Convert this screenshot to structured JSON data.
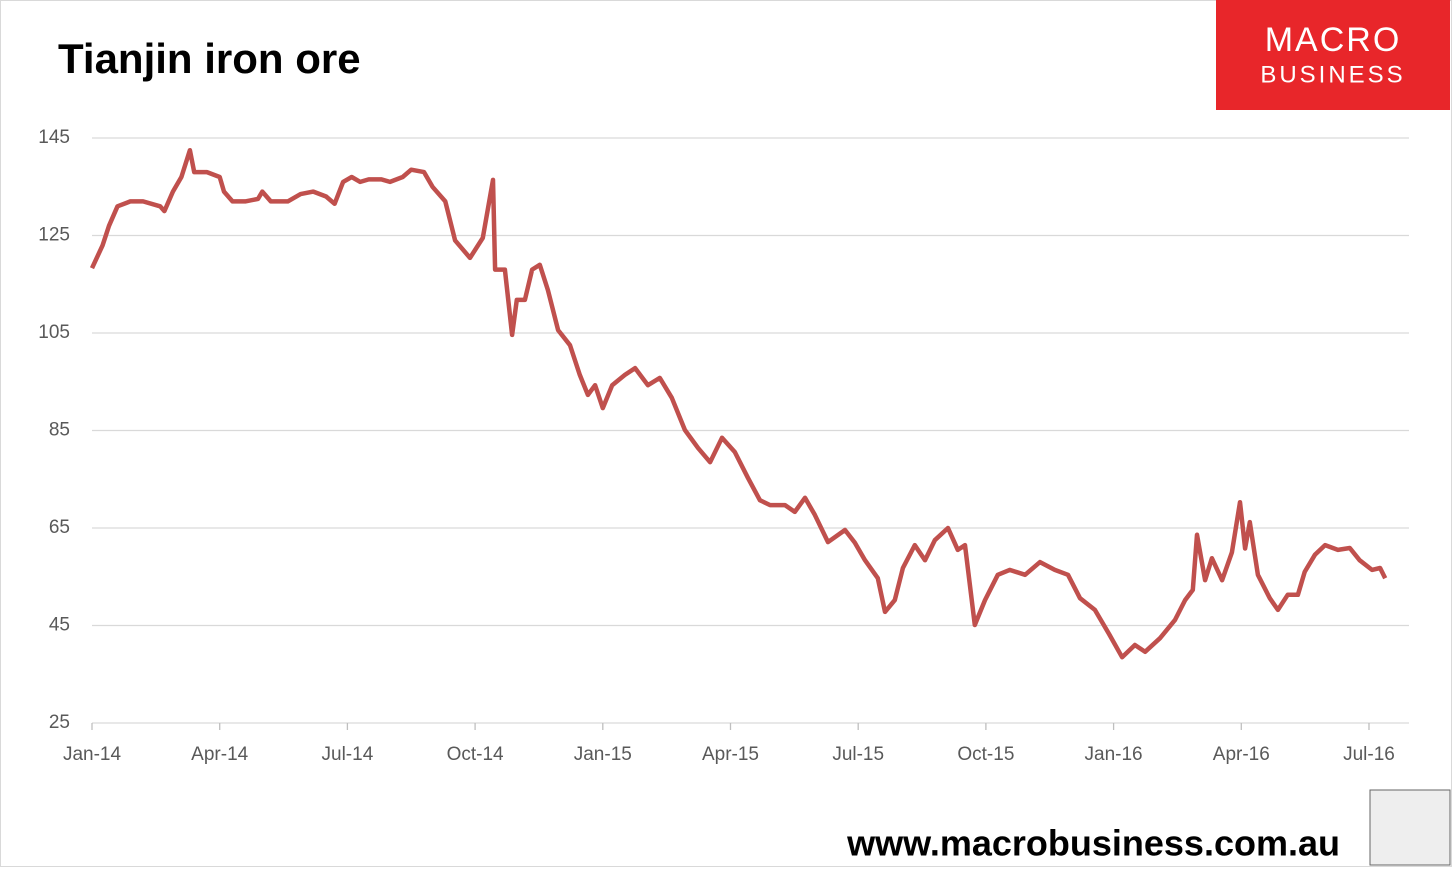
{
  "chart_data": {
    "type": "line",
    "title": "Tianjin iron ore",
    "logo": {
      "line1": "MACRO",
      "line2": "BUSINESS"
    },
    "footer": "www.macrobusiness.com.au",
    "xlim": [
      0,
      30.94
    ],
    "xticks": [
      {
        "value": 0,
        "label": "Jan-14"
      },
      {
        "value": 3,
        "label": "Apr-14"
      },
      {
        "value": 6,
        "label": "Jul-14"
      },
      {
        "value": 9,
        "label": "Oct-14"
      },
      {
        "value": 12,
        "label": "Jan-15"
      },
      {
        "value": 15,
        "label": "Apr-15"
      },
      {
        "value": 18,
        "label": "Jul-15"
      },
      {
        "value": 21,
        "label": "Oct-15"
      },
      {
        "value": 24,
        "label": "Jan-16"
      },
      {
        "value": 27,
        "label": "Apr-16"
      },
      {
        "value": 30,
        "label": "Jul-16"
      }
    ],
    "ylim": [
      25,
      145
    ],
    "yticks": [
      25,
      45,
      65,
      85,
      105,
      125,
      145
    ],
    "grid": true,
    "series": [
      {
        "color": "#c0504d",
        "x": [
          0,
          0.25,
          0.4,
          0.6,
          0.9,
          1.2,
          1.6,
          1.7,
          1.9,
          2.1,
          2.3,
          2.4,
          2.7,
          3.0,
          3.1,
          3.3,
          3.6,
          3.9,
          4.0,
          4.2,
          4.6,
          4.9,
          5.2,
          5.5,
          5.7,
          5.9,
          6.1,
          6.3,
          6.5,
          6.8,
          7.0,
          7.3,
          7.5,
          7.8,
          8.0,
          8.3,
          8.53,
          8.88,
          9.18,
          9.42,
          9.47,
          9.7,
          9.87,
          9.98,
          10.17,
          10.34,
          10.52,
          10.71,
          10.95,
          11.23,
          11.46,
          11.65,
          11.82,
          12.0,
          12.22,
          12.52,
          12.76,
          13.06,
          13.34,
          13.62,
          13.93,
          14.24,
          14.52,
          14.8,
          15.1,
          15.41,
          15.69,
          15.93,
          16.28,
          16.51,
          16.75,
          16.98,
          17.29,
          17.69,
          17.92,
          18.16,
          18.46,
          18.63,
          18.86,
          19.05,
          19.33,
          19.57,
          19.8,
          20.11,
          20.34,
          20.51,
          20.74,
          20.98,
          21.28,
          21.56,
          21.92,
          22.27,
          22.62,
          22.93,
          23.21,
          23.56,
          23.91,
          24.2,
          24.5,
          24.74,
          25.09,
          25.44,
          25.68,
          25.86,
          25.96,
          26.15,
          26.31,
          26.55,
          26.78,
          26.97,
          27.09,
          27.2,
          27.39,
          27.67,
          27.86,
          28.09,
          28.33,
          28.49,
          28.73,
          28.97,
          29.27,
          29.55,
          29.78,
          30.07,
          30.26,
          30.38
        ],
        "values": [
          118.3,
          123,
          127,
          131,
          132,
          132,
          131,
          130,
          134,
          137,
          142.5,
          138,
          138,
          137,
          134,
          132,
          132,
          132.5,
          134,
          132,
          132,
          133.5,
          134,
          133,
          131.5,
          136,
          137,
          136,
          136.5,
          136.5,
          136,
          137,
          138.5,
          138,
          135,
          132,
          124,
          120.4,
          124.5,
          136.4,
          118,
          118,
          104.6,
          111.8,
          111.8,
          118,
          119,
          113.8,
          105.6,
          102.5,
          96.4,
          92.3,
          94.3,
          89.6,
          94.3,
          96.4,
          97.8,
          94.3,
          95.8,
          91.7,
          85.1,
          81.4,
          78.5,
          83.5,
          80.6,
          75.3,
          70.7,
          69.7,
          69.7,
          68.3,
          71.2,
          67.7,
          62.1,
          64.6,
          62,
          58.4,
          54.7,
          47.8,
          50.2,
          56.8,
          61.5,
          58.4,
          62.5,
          65,
          60.5,
          61.5,
          45.1,
          50.2,
          55.4,
          56.4,
          55.4,
          58,
          56.4,
          55.4,
          50.6,
          48.2,
          43,
          38.5,
          41,
          39.6,
          42.4,
          46.1,
          50.2,
          52.3,
          63.6,
          54.3,
          58.8,
          54.3,
          60,
          70.3,
          60.8,
          66.2,
          55.4,
          50.6,
          48.2,
          51.3,
          51.3,
          56,
          59.5,
          61.5,
          60.5,
          60.9,
          58.4,
          56.4,
          56.8,
          54.7
        ]
      }
    ]
  }
}
